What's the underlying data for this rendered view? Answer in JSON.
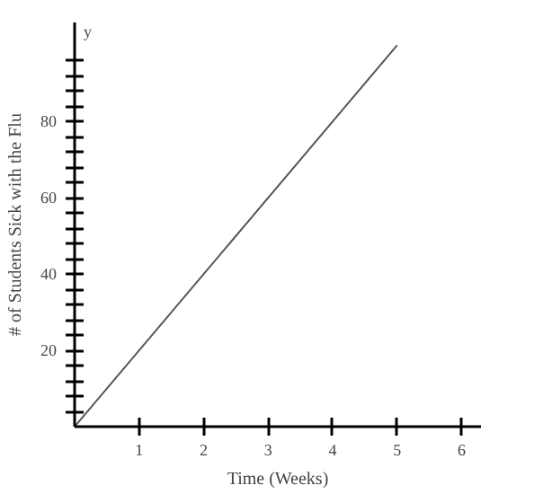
{
  "chart_data": {
    "type": "line",
    "xlabel": "Time (Weeks)",
    "ylabel": "# of Students Sick with the Flu",
    "annotations": [
      "y"
    ],
    "x": [
      0,
      5
    ],
    "series": [
      {
        "color": "#555555",
        "values": [
          0,
          100
        ]
      }
    ],
    "xlim": [
      0,
      6.3
    ],
    "ylim": [
      0,
      106
    ],
    "xticks": [
      1,
      2,
      3,
      4,
      5,
      6
    ],
    "yticks": [
      {
        "value": 4,
        "label": null
      },
      {
        "value": 8,
        "label": null
      },
      {
        "value": 12,
        "label": null
      },
      {
        "value": 16,
        "label": null
      },
      20,
      {
        "value": 24,
        "label": null
      },
      {
        "value": 28,
        "label": null
      },
      {
        "value": 32,
        "label": null
      },
      {
        "value": 36,
        "label": null
      },
      40,
      {
        "value": 44,
        "label": null
      },
      {
        "value": 48,
        "label": null
      },
      {
        "value": 52,
        "label": null
      },
      {
        "value": 56,
        "label": null
      },
      60,
      {
        "value": 64,
        "label": null
      },
      {
        "value": 68,
        "label": null
      },
      {
        "value": 72,
        "label": null
      },
      {
        "value": 76,
        "label": null
      },
      80,
      {
        "value": 84,
        "label": null
      },
      {
        "value": 88,
        "label": null
      },
      {
        "value": 92,
        "label": null
      },
      {
        "value": 96,
        "label": null
      }
    ],
    "grid": false,
    "marker": "none",
    "line_style": "solid"
  }
}
